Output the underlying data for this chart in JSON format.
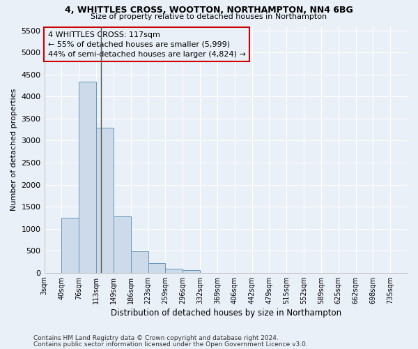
{
  "title1": "4, WHITTLES CROSS, WOOTTON, NORTHAMPTON, NN4 6BG",
  "title2": "Size of property relative to detached houses in Northampton",
  "xlabel": "Distribution of detached houses by size in Northampton",
  "ylabel": "Number of detached properties",
  "bar_color": "#cddaea",
  "bar_edge_color": "#6699bb",
  "bin_labels": [
    "3sqm",
    "40sqm",
    "76sqm",
    "113sqm",
    "149sqm",
    "186sqm",
    "223sqm",
    "259sqm",
    "296sqm",
    "332sqm",
    "369sqm",
    "406sqm",
    "442sqm",
    "479sqm",
    "515sqm",
    "552sqm",
    "589sqm",
    "625sqm",
    "662sqm",
    "698sqm",
    "735sqm"
  ],
  "bar_heights": [
    0,
    1255,
    4340,
    3290,
    1275,
    480,
    220,
    90,
    60,
    0,
    0,
    0,
    0,
    0,
    0,
    0,
    0,
    0,
    0,
    0,
    0
  ],
  "vline_index": 2.78,
  "vline_color": "#555555",
  "annotation_line1": "4 WHITTLES CROSS: 117sqm",
  "annotation_line2": "← 55% of detached houses are smaller (5,999)",
  "annotation_line3": "44% of semi-detached houses are larger (4,824) →",
  "annotation_box_edgecolor": "#cc0000",
  "ylim": [
    0,
    5600
  ],
  "yticks": [
    0,
    500,
    1000,
    1500,
    2000,
    2500,
    3000,
    3500,
    4000,
    4500,
    5000,
    5500
  ],
  "background_color": "#eaf0f8",
  "grid_color": "#ffffff",
  "footer1": "Contains HM Land Registry data © Crown copyright and database right 2024.",
  "footer2": "Contains public sector information licensed under the Open Government Licence v3.0."
}
